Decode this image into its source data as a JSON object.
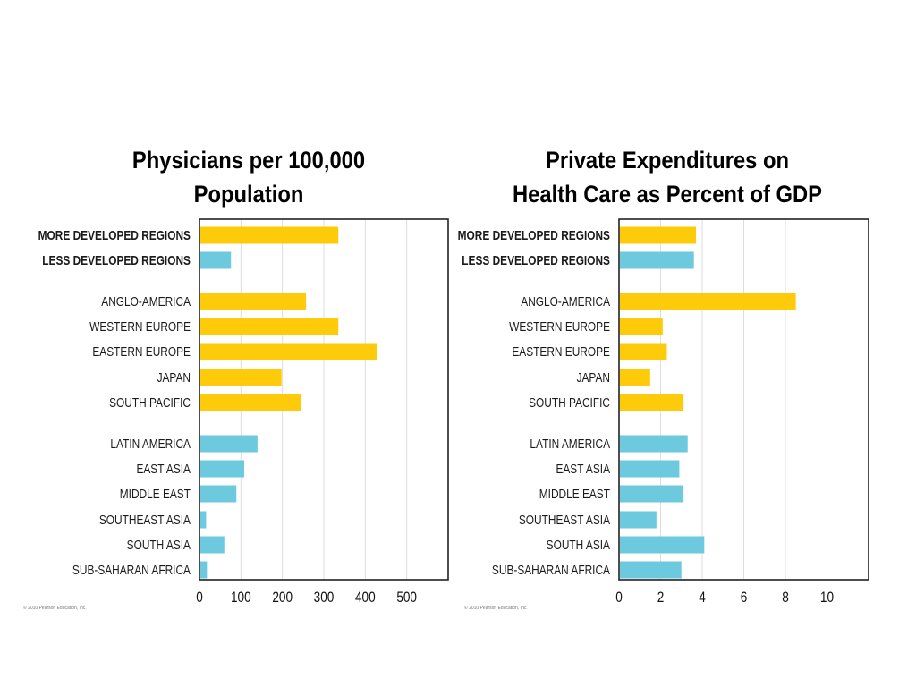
{
  "chart_data": [
    {
      "type": "bar",
      "orientation": "horizontal",
      "title": "Physicians per 100,000 Population",
      "title_lines": [
        "Physicians per 100,000",
        "Population"
      ],
      "xlabel": "",
      "ylabel": "",
      "xlim": [
        0,
        600
      ],
      "xticks": [
        0,
        100,
        200,
        300,
        400,
        500
      ],
      "xtick_labels": [
        "0",
        "100",
        "200",
        "300",
        "400",
        "500"
      ],
      "grid": true,
      "categories": [
        "MORE DEVELOPED REGIONS",
        "LESS DEVELOPED REGIONS",
        "ANGLO-AMERICA",
        "WESTERN EUROPE",
        "EASTERN EUROPE",
        "JAPAN",
        "SOUTH PACIFIC",
        "LATIN AMERICA",
        "EAST ASIA",
        "MIDDLE EAST",
        "SOUTHEAST ASIA",
        "SOUTH ASIA",
        "SUB-SAHARAN AFRICA"
      ],
      "bold_categories": [
        "MORE DEVELOPED REGIONS",
        "LESS DEVELOPED REGIONS"
      ],
      "groups": [
        [
          0,
          1
        ],
        [
          2,
          3,
          4,
          5,
          6
        ],
        [
          7,
          8,
          9,
          10,
          11,
          12
        ]
      ],
      "values": [
        335,
        76,
        257,
        335,
        428,
        198,
        246,
        140,
        108,
        89,
        16,
        60,
        18
      ],
      "bar_colors": [
        "#FECB0B",
        "#6DCADE",
        "#FECB0B",
        "#FECB0B",
        "#FECB0B",
        "#FECB0B",
        "#FECB0B",
        "#6DCADE",
        "#6DCADE",
        "#6DCADE",
        "#6DCADE",
        "#6DCADE",
        "#6DCADE"
      ],
      "copyright": "© 2010 Pearson Education, Inc."
    },
    {
      "type": "bar",
      "orientation": "horizontal",
      "title": "Private Expenditures on Health Care as Percent of GDP",
      "title_lines": [
        "Private Expenditures on",
        "Health Care as Percent of GDP"
      ],
      "xlabel": "",
      "ylabel": "",
      "xlim": [
        0,
        12
      ],
      "xticks": [
        0,
        2,
        4,
        6,
        8,
        10
      ],
      "xtick_labels": [
        "0",
        "2",
        "4",
        "6",
        "8",
        "10"
      ],
      "grid": true,
      "categories": [
        "MORE DEVELOPED REGIONS",
        "LESS DEVELOPED REGIONS",
        "ANGLO-AMERICA",
        "WESTERN EUROPE",
        "EASTERN EUROPE",
        "JAPAN",
        "SOUTH PACIFIC",
        "LATIN AMERICA",
        "EAST ASIA",
        "MIDDLE EAST",
        "SOUTHEAST ASIA",
        "SOUTH ASIA",
        "SUB-SAHARAN AFRICA"
      ],
      "bold_categories": [
        "MORE DEVELOPED REGIONS",
        "LESS DEVELOPED REGIONS"
      ],
      "groups": [
        [
          0,
          1
        ],
        [
          2,
          3,
          4,
          5,
          6
        ],
        [
          7,
          8,
          9,
          10,
          11,
          12
        ]
      ],
      "values": [
        3.7,
        3.6,
        8.5,
        2.1,
        2.3,
        1.5,
        3.1,
        3.3,
        2.9,
        3.1,
        1.8,
        4.1,
        3.0
      ],
      "bar_colors": [
        "#FECB0B",
        "#6DCADE",
        "#FECB0B",
        "#FECB0B",
        "#FECB0B",
        "#FECB0B",
        "#FECB0B",
        "#6DCADE",
        "#6DCADE",
        "#6DCADE",
        "#6DCADE",
        "#6DCADE",
        "#6DCADE"
      ],
      "copyright": "© 2010 Pearson Education, Inc."
    }
  ],
  "colors": {
    "more_developed": "#FECB0B",
    "less_developed": "#6DCADE",
    "grid": "#DDDDDD",
    "frame": "#222222"
  }
}
